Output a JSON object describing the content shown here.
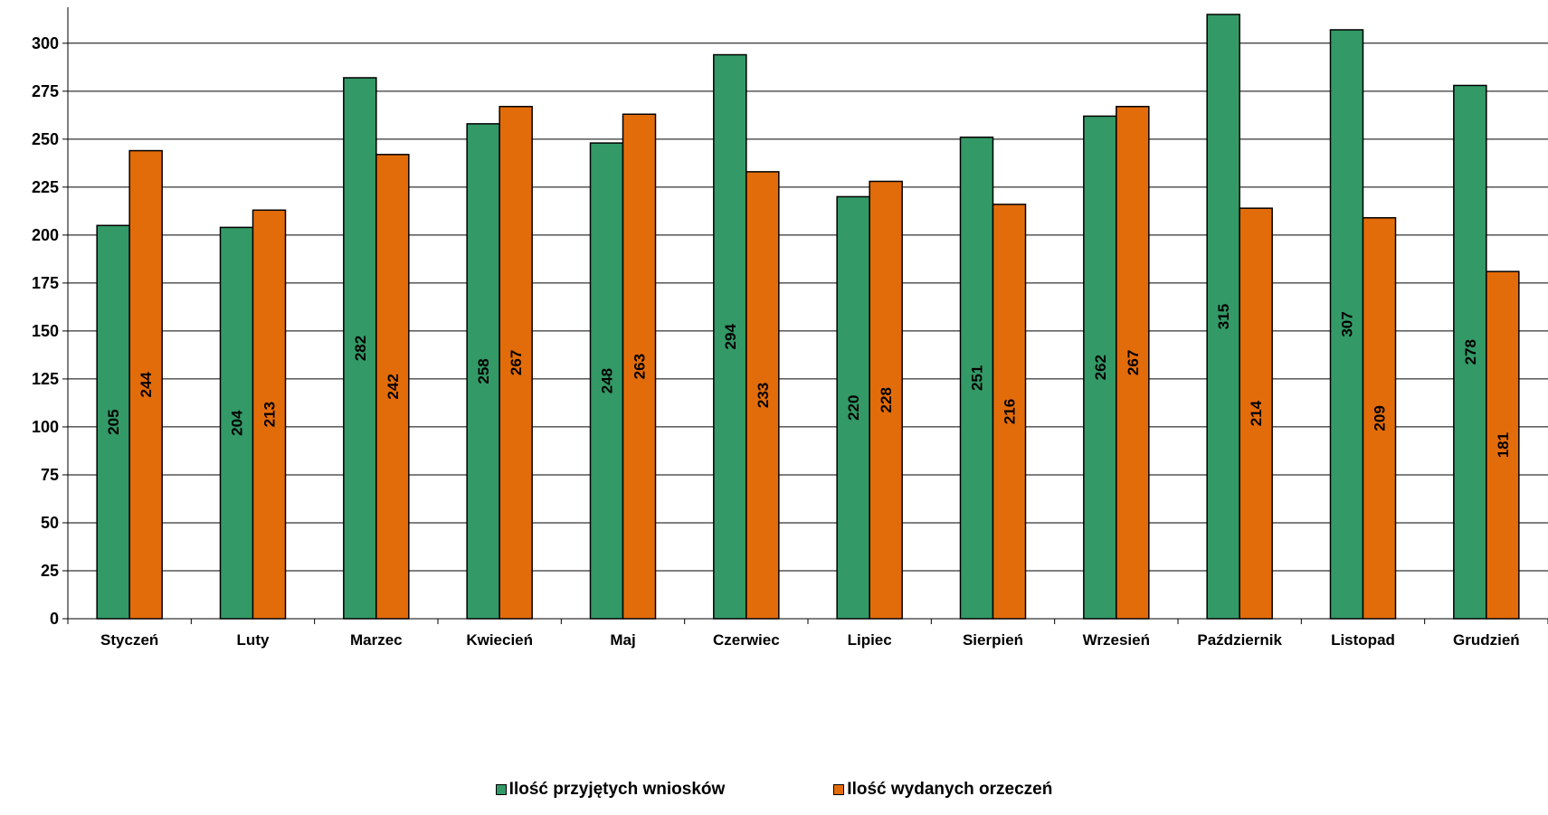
{
  "chart_data": {
    "type": "bar",
    "categories": [
      "Styczeń",
      "Luty",
      "Marzec",
      "Kwiecień",
      "Maj",
      "Czerwiec",
      "Lipiec",
      "Sierpień",
      "Wrzesień",
      "Październik",
      "Listopad",
      "Grudzień"
    ],
    "series": [
      {
        "name": "Ilość przyjętych wniosków",
        "color": "#339966",
        "values": [
          205,
          204,
          282,
          258,
          248,
          294,
          220,
          251,
          262,
          315,
          307,
          278
        ]
      },
      {
        "name": "Ilość wydanych orzeczeń",
        "color": "#E36C0A",
        "values": [
          244,
          213,
          242,
          267,
          263,
          233,
          228,
          216,
          267,
          214,
          209,
          181
        ]
      }
    ],
    "ylim": [
      0,
      315
    ],
    "yticks": [
      0,
      25,
      50,
      75,
      100,
      125,
      150,
      175,
      200,
      225,
      250,
      275,
      300
    ],
    "grid": true,
    "legend_position": "bottom",
    "title": "",
    "xlabel": "",
    "ylabel": ""
  }
}
